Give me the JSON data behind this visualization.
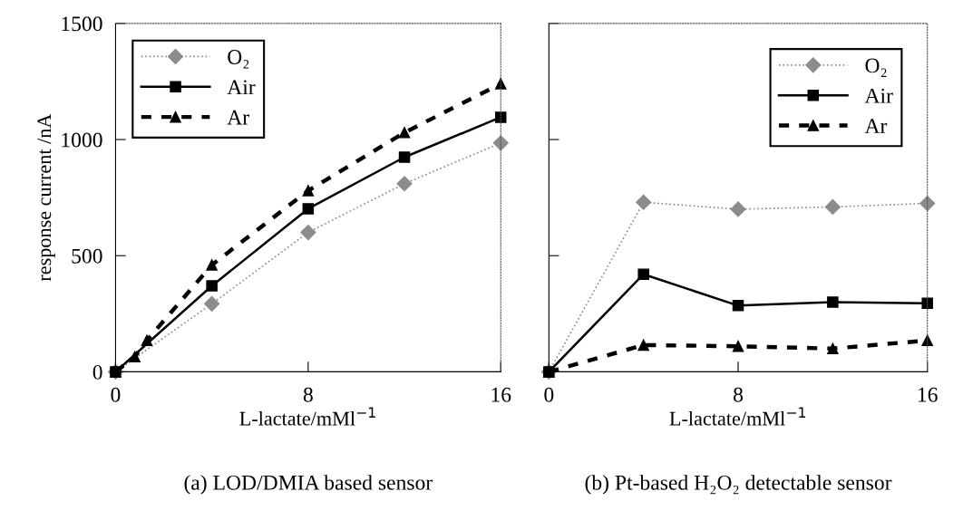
{
  "chart_data": [
    {
      "type": "line",
      "title": "(a) LOD/DMIA based sensor",
      "xlabel": "L-lactate/mMl$^{−1}$",
      "ylabel": "response current /nA",
      "xlim": [
        0,
        16
      ],
      "xticks": [
        0,
        8,
        16
      ],
      "ylim": [
        0,
        1500
      ],
      "yticks": [
        0,
        500,
        1000,
        1500
      ],
      "legend": "top left",
      "grid": false,
      "series": [
        {
          "name": "O₂",
          "color": "#8c8c8c",
          "marker": "diamond",
          "line_style": "dotted",
          "x": [
            0,
            4,
            8,
            12,
            16
          ],
          "values": [
            0,
            293,
            600,
            810,
            985
          ]
        },
        {
          "name": "Air",
          "color": "#000000",
          "marker": "square",
          "line_style": "solid",
          "x": [
            0,
            4,
            8,
            12,
            16
          ],
          "values": [
            0,
            370,
            702,
            924,
            1096
          ]
        },
        {
          "name": "Ar",
          "color": "#000000",
          "marker": "triangle",
          "line_style": "dashed",
          "x": [
            0,
            0.8,
            1.3,
            4,
            8,
            12,
            16
          ],
          "values": [
            0,
            65,
            135,
            460,
            780,
            1030,
            1240
          ]
        }
      ]
    },
    {
      "type": "line",
      "title": "(b) Pt-based H₂O₂ detectable sensor",
      "xlabel": "L-lactate/mMl$^{−1}$",
      "xlim": [
        0,
        16
      ],
      "xticks": [
        0,
        8,
        16
      ],
      "ylim": [
        0,
        1500
      ],
      "yticks": [
        {
          "value": 0,
          "label": null
        },
        {
          "value": 500,
          "label": null
        },
        {
          "value": 1000,
          "label": null
        },
        {
          "value": 1500,
          "label": null
        }
      ],
      "tick_labels": "x",
      "legend": "top right",
      "grid": false,
      "series": [
        {
          "name": "O₂",
          "color": "#8c8c8c",
          "marker": "diamond",
          "line_style": "dotted",
          "x": [
            0,
            4,
            8,
            12,
            16
          ],
          "values": [
            0,
            730,
            700,
            710,
            725
          ]
        },
        {
          "name": "Air",
          "color": "#000000",
          "marker": "square",
          "line_style": "solid",
          "x": [
            0,
            4,
            8,
            12,
            16
          ],
          "values": [
            0,
            420,
            285,
            300,
            295
          ]
        },
        {
          "name": "Ar",
          "color": "#000000",
          "marker": "triangle",
          "line_style": "dashed",
          "x": [
            0,
            4,
            8,
            12,
            16
          ],
          "values": [
            0,
            115,
            110,
            100,
            135
          ]
        }
      ]
    }
  ]
}
